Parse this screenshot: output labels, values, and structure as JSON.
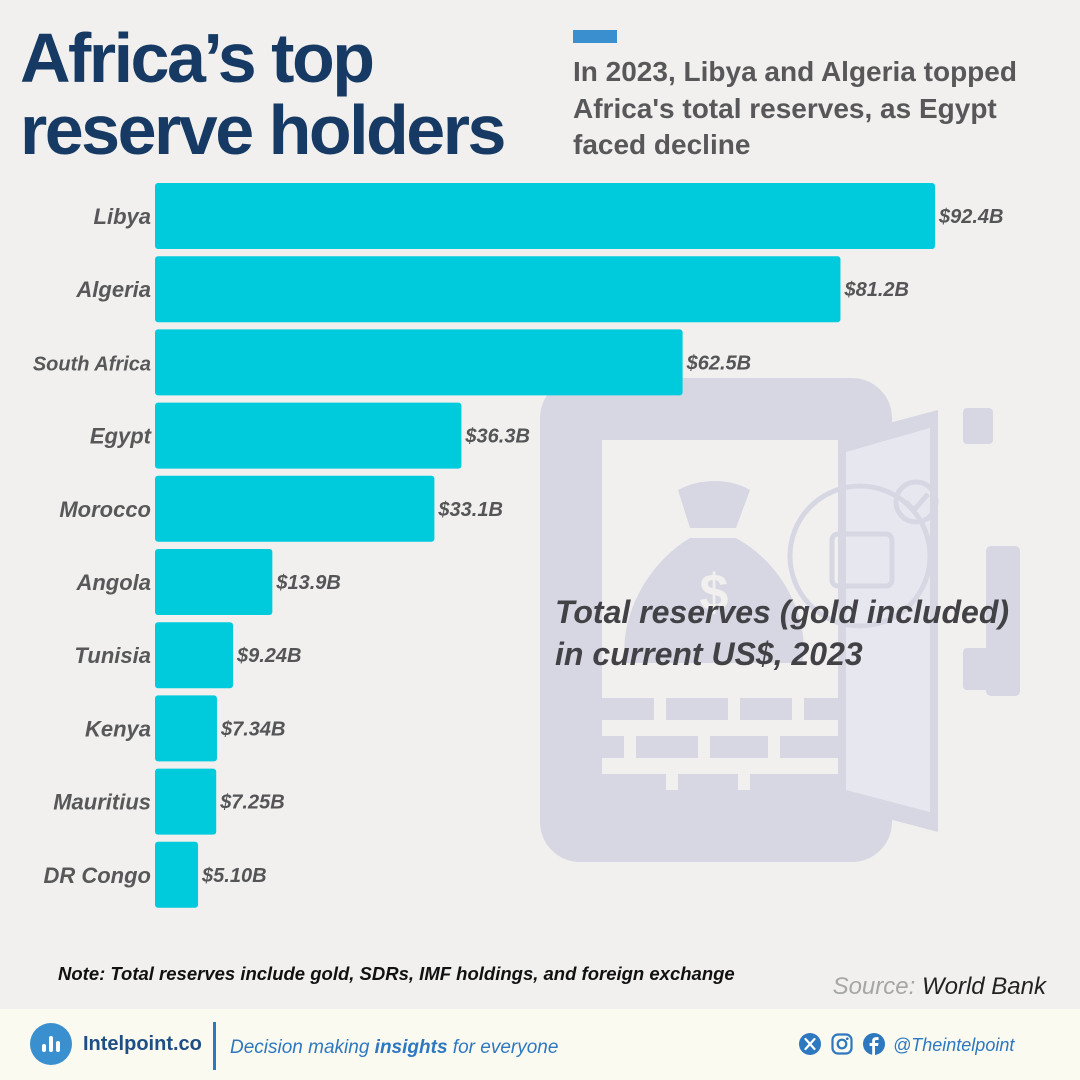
{
  "header": {
    "title": "Africa’s top\nreserve holders",
    "subtitle": "In 2023, Libya and Algeria topped Africa's total reserves, as Egypt faced decline"
  },
  "annotation": "Total reserves (gold included)\nin current US$, 2023",
  "note": "Note: Total reserves include gold, SDRs, IMF holdings, and foreign exchange",
  "source": {
    "label": "Source:",
    "name": "World Bank"
  },
  "footer": {
    "brand": "Intelpoint.co",
    "tagline_pre": "Decision making ",
    "tagline_bold": "insights",
    "tagline_post": " for everyone",
    "handle": "@Theintelpoint"
  },
  "icons": [
    "logo-icon",
    "x-icon",
    "instagram-icon",
    "facebook-icon",
    "safe-icon"
  ],
  "colors": {
    "bar": "#00cbdd",
    "title": "#163a63",
    "accent": "#3a8fcf",
    "label": "#58585a",
    "safe_watermark": "#d6d7e3"
  },
  "chart_data": {
    "type": "bar",
    "orientation": "horizontal",
    "title": "",
    "xlabel": "",
    "ylabel": "",
    "xlim": [
      0,
      92.4
    ],
    "unit": "US$ billions",
    "categories": [
      "Libya",
      "Algeria",
      "South Africa",
      "Egypt",
      "Morocco",
      "Angola",
      "Tunisia",
      "Kenya",
      "Mauritius",
      "DR Congo"
    ],
    "values": [
      92.4,
      81.2,
      62.5,
      36.3,
      33.1,
      13.9,
      9.24,
      7.34,
      7.25,
      5.1
    ],
    "data_labels": [
      "$92.4B",
      "$81.2B",
      "$62.5B",
      "$36.3B",
      "$33.1B",
      "$13.9B",
      "$9.24B",
      "$7.34B",
      "$7.25B",
      "$5.10B"
    ],
    "grid": false,
    "legend": "none"
  }
}
